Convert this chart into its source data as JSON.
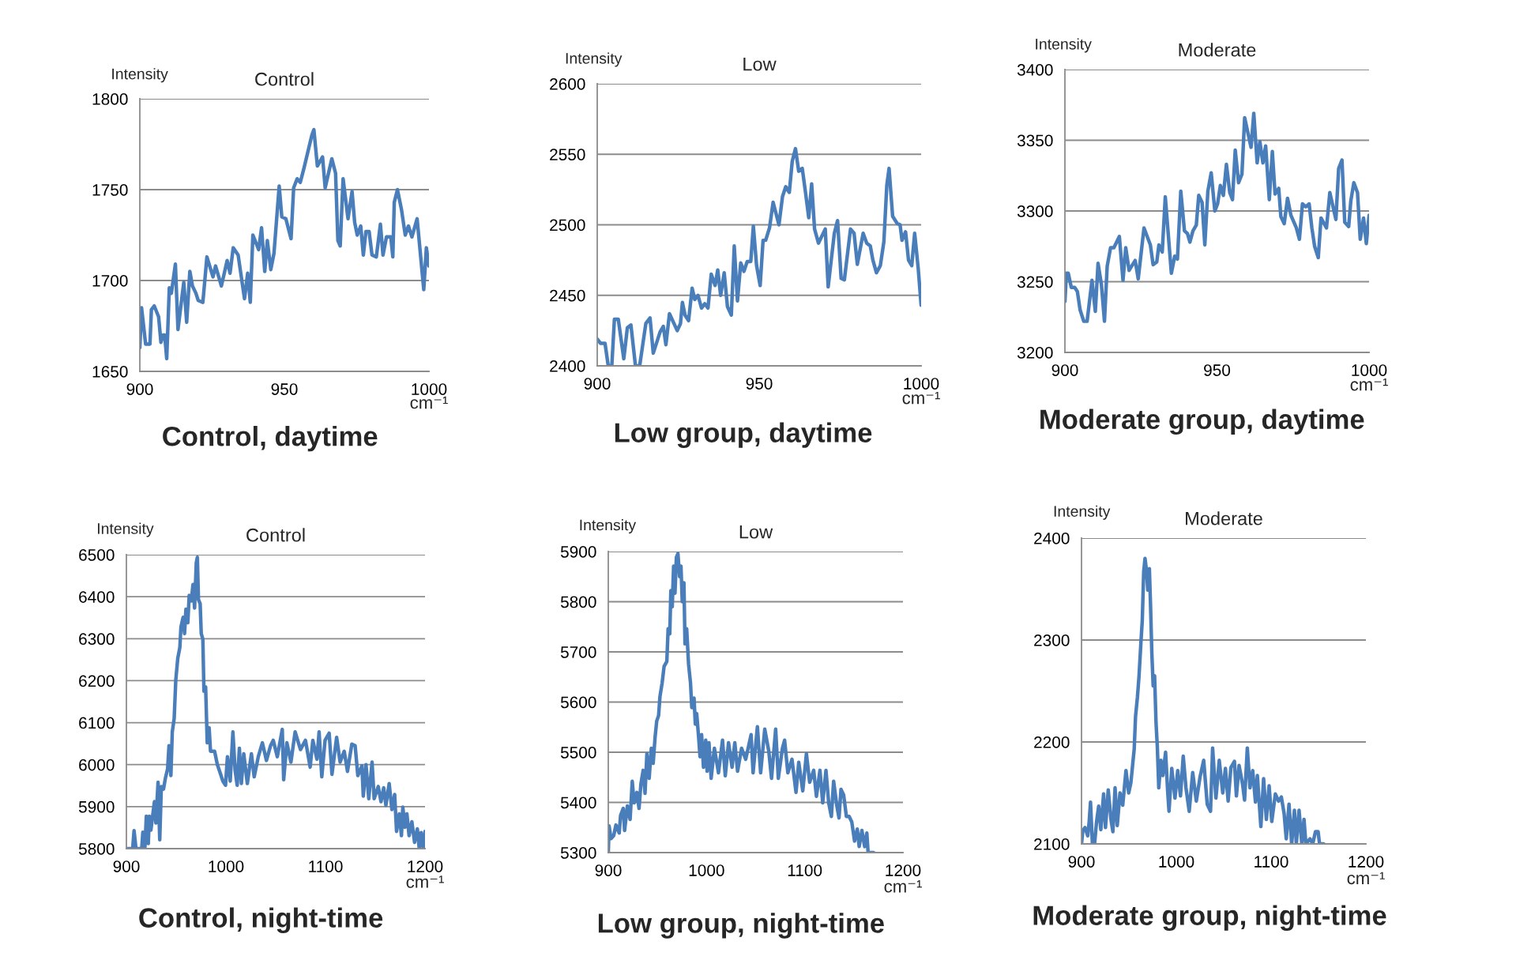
{
  "chart_data": [
    {
      "type": "line",
      "title": "Control",
      "ylabel": "Intensity",
      "xlabel": "cm⁻¹",
      "annotations": [
        "Control, daytime"
      ],
      "xlim": [
        900,
        1000
      ],
      "ylim": [
        1650,
        1800
      ],
      "xticks": [
        900,
        950,
        1000
      ],
      "yticks": [
        1650,
        1700,
        1750,
        1800
      ],
      "grid": "y",
      "color": "#4a7ebb",
      "x": [
        900,
        900.6,
        902,
        903.5,
        904,
        905,
        906.5,
        907.3,
        908,
        908.6,
        909.3,
        910.2,
        910.9,
        912.3,
        913.2,
        915.2,
        916.2,
        917.3,
        918.2,
        919.4,
        920.2,
        921.8,
        923.2,
        925.3,
        926.2,
        928.2,
        930.2,
        931.2,
        932.3,
        934,
        936.2,
        937.3,
        938.2,
        939.1,
        941.1,
        942.1,
        943.2,
        944.1,
        945.3,
        946.4,
        948.2,
        949.1,
        950.5,
        952.3,
        953.2,
        954.4,
        955.5,
        956.8,
        959.5,
        960.2,
        961.4,
        963.2,
        964.1,
        966.4,
        967.7,
        968.5,
        969.3,
        970.3,
        972,
        973.4,
        974.3,
        975.2,
        976.4,
        977.3,
        978.2,
        979.3,
        980.3,
        981.8,
        983.2,
        984.1,
        985.3,
        986.8,
        987.5,
        988,
        989.1,
        990.5,
        991.8,
        992.9,
        994.1,
        995.9,
        998.2,
        999.1,
        1000
      ],
      "values": [
        1663,
        1685,
        1665,
        1665,
        1684,
        1686,
        1680,
        1666,
        1670,
        1670,
        1657,
        1696,
        1693,
        1709,
        1673,
        1699,
        1677,
        1705,
        1697,
        1693,
        1689,
        1688,
        1713,
        1702,
        1708,
        1697,
        1711,
        1704,
        1718,
        1714,
        1690,
        1704,
        1688,
        1725,
        1717,
        1729,
        1705,
        1722,
        1706,
        1715,
        1752,
        1735,
        1734,
        1723,
        1751,
        1756,
        1754,
        1762,
        1780,
        1783,
        1763,
        1768,
        1751,
        1767,
        1759,
        1722,
        1719,
        1756,
        1734,
        1749,
        1732,
        1725,
        1730,
        1714,
        1727,
        1727,
        1714,
        1713,
        1731,
        1714,
        1724,
        1724,
        1713,
        1743,
        1750,
        1739,
        1725,
        1730,
        1724,
        1734,
        1695,
        1718,
        1708
      ]
    },
    {
      "type": "line",
      "title": "Low",
      "ylabel": "Intensity",
      "xlabel": "cm⁻¹",
      "annotations": [
        "Low group, daytime"
      ],
      "xlim": [
        900,
        1000
      ],
      "ylim": [
        2400,
        2600
      ],
      "xticks": [
        900,
        950,
        1000
      ],
      "yticks": [
        2400,
        2450,
        2500,
        2550,
        2600
      ],
      "grid": "y",
      "color": "#4a7ebb",
      "x": [
        900,
        901,
        902.4,
        903.4,
        904.5,
        905.3,
        906.5,
        908.2,
        909.3,
        910.4,
        911.8,
        913.1,
        915,
        916.3,
        917.3,
        919.4,
        920.4,
        921.2,
        922.3,
        924.7,
        925.7,
        926.3,
        927.1,
        928.2,
        929.3,
        930.1,
        931.1,
        932.2,
        933.2,
        934.2,
        935.2,
        936.4,
        937.2,
        938.1,
        939.2,
        940.2,
        941.4,
        942.3,
        943.3,
        944.3,
        945.3,
        946.3,
        947.4,
        948.2,
        949.2,
        950.3,
        951.2,
        952,
        953.2,
        954.3,
        956.1,
        957.2,
        958.2,
        959.3,
        960.2,
        961.2,
        962.2,
        963.3,
        964.3,
        965.3,
        966.2,
        967.1,
        968.3,
        970.4,
        971.3,
        973.2,
        974.2,
        975.3,
        976.3,
        978.2,
        979.3,
        980.3,
        982.1,
        983.2,
        984.3,
        985.1,
        986.2,
        987.4,
        988.5,
        989.4,
        990.1,
        991.2,
        992.6,
        993.5,
        994.1,
        995.2,
        996.1,
        997.1,
        998,
        999.1,
        1000
      ],
      "values": [
        2419,
        2416,
        2416,
        2400,
        2400,
        2433,
        2433,
        2405,
        2427,
        2429,
        2400,
        2400,
        2430,
        2434,
        2409,
        2424,
        2428,
        2415,
        2437,
        2425,
        2430,
        2445,
        2436,
        2432,
        2455,
        2447,
        2450,
        2441,
        2444,
        2441,
        2465,
        2457,
        2468,
        2450,
        2466,
        2442,
        2436,
        2485,
        2446,
        2473,
        2467,
        2474,
        2474,
        2499,
        2471,
        2457,
        2489,
        2489,
        2498,
        2516,
        2500,
        2520,
        2527,
        2523,
        2545,
        2554,
        2538,
        2540,
        2523,
        2505,
        2529,
        2497,
        2487,
        2497,
        2456,
        2494,
        2503,
        2462,
        2461,
        2497,
        2494,
        2472,
        2494,
        2487,
        2485,
        2475,
        2466,
        2471,
        2488,
        2528,
        2540,
        2506,
        2501,
        2500,
        2489,
        2495,
        2475,
        2471,
        2494,
        2469,
        2443
      ]
    },
    {
      "type": "line",
      "title": "Moderate",
      "ylabel": "Intensity",
      "xlabel": "cm⁻¹",
      "annotations": [
        "Moderate group, daytime"
      ],
      "xlim": [
        900,
        1000
      ],
      "ylim": [
        3200,
        3400
      ],
      "xticks": [
        900,
        950,
        1000
      ],
      "yticks": [
        3200,
        3250,
        3300,
        3350,
        3400
      ],
      "grid": "y",
      "color": "#4a7ebb",
      "x": [
        900,
        900.5,
        901.1,
        902.1,
        903.2,
        904.1,
        905,
        906.2,
        907.3,
        908.9,
        910,
        910.9,
        912,
        913,
        913.9,
        915,
        916.1,
        917.9,
        919.1,
        920,
        921.1,
        923.1,
        924.1,
        926,
        928.1,
        929,
        930.2,
        930.9,
        932,
        933,
        935,
        936.1,
        937,
        938.1,
        939.3,
        940.3,
        941.1,
        942.1,
        943.2,
        944,
        945.1,
        946,
        947,
        948.1,
        949.3,
        950.2,
        951.1,
        952.1,
        953.1,
        954.2,
        955.1,
        956,
        957.1,
        958.2,
        959.1,
        961.2,
        962.1,
        963.2,
        964.1,
        965.1,
        966,
        967.2,
        968.2,
        969.1,
        970.3,
        971,
        972.1,
        973.2,
        974.3,
        976.1,
        977.1,
        978.1,
        979.2,
        980.3,
        981.2,
        982.1,
        983.3,
        984.2,
        986,
        987.1,
        989.1,
        990,
        991.1,
        992,
        993.3,
        994,
        995,
        996.2,
        997.1,
        998.2,
        999.1,
        1000
      ],
      "values": [
        3236,
        3256,
        3256,
        3246,
        3246,
        3243,
        3230,
        3222,
        3222,
        3251,
        3229,
        3263,
        3248,
        3222,
        3261,
        3274,
        3274,
        3282,
        3251,
        3274,
        3258,
        3265,
        3252,
        3288,
        3276,
        3262,
        3264,
        3276,
        3271,
        3310,
        3256,
        3268,
        3266,
        3314,
        3286,
        3284,
        3278,
        3286,
        3290,
        3311,
        3306,
        3276,
        3314,
        3327,
        3300,
        3305,
        3318,
        3311,
        3333,
        3313,
        3308,
        3343,
        3320,
        3326,
        3366,
        3345,
        3369,
        3334,
        3349,
        3334,
        3346,
        3308,
        3342,
        3312,
        3316,
        3296,
        3291,
        3309,
        3297,
        3288,
        3280,
        3305,
        3303,
        3305,
        3288,
        3275,
        3267,
        3295,
        3288,
        3313,
        3294,
        3330,
        3336,
        3292,
        3289,
        3307,
        3320,
        3313,
        3280,
        3295,
        3277,
        3297
      ]
    },
    {
      "type": "line",
      "title": "Control",
      "ylabel": "Intensity",
      "xlabel": "cm⁻¹",
      "annotations": [
        "Control, night-time"
      ],
      "xlim": [
        900,
        1200
      ],
      "ylim": [
        5800,
        6500
      ],
      "xticks": [
        900,
        1000,
        1100,
        1200
      ],
      "yticks": [
        5800,
        5900,
        6000,
        6100,
        6200,
        6300,
        6400,
        6500
      ],
      "grid": "y",
      "color": "#4a7ebb",
      "x": [
        900,
        903.6,
        906.3,
        907.7,
        909.6,
        915.4,
        916.5,
        918.6,
        920,
        922,
        923,
        924.6,
        926.3,
        928.2,
        929.6,
        931.8,
        933.5,
        935.1,
        937.3,
        939.2,
        941.4,
        942.8,
        944.7,
        946.1,
        948,
        949.6,
        951.6,
        953.7,
        954.8,
        957,
        958.4,
        959.8,
        961.7,
        963.1,
        965.2,
        966.9,
        968.5,
        970.2,
        971.3,
        972.4,
        974.1,
        975.2,
        976.8,
        977.9,
        979.6,
        981.2,
        983.1,
        984.5,
        988.6,
        991.4,
        994.1,
        996.9,
        999.6,
        1001.5,
        1004.3,
        1007,
        1009.2,
        1011.3,
        1013.5,
        1015.5,
        1017.9,
        1021.5,
        1025.6,
        1028.4,
        1032.5,
        1036.6,
        1040.7,
        1044.8,
        1047.5,
        1051.6,
        1056.6,
        1058,
        1061.2,
        1065.3,
        1069.5,
        1074.9,
        1079.9,
        1084.6,
        1087.3,
        1091.4,
        1093.6,
        1096.3,
        1099.6,
        1103.7,
        1106.5,
        1111.2,
        1114.7,
        1118.8,
        1122.1,
        1126.5,
        1129.8,
        1132.5,
        1136.6,
        1138,
        1140.7,
        1143.5,
        1146.8,
        1148.9,
        1153,
        1155.8,
        1158.5,
        1160.7,
        1164,
        1166.7,
        1169.5,
        1171.4,
        1174.2,
        1176.3,
        1177.7,
        1179.9,
        1181.8,
        1184,
        1186.8,
        1189.5,
        1192.3,
        1194.2,
        1196.1,
        1198.2,
        1200
      ],
      "values": [
        5800,
        5800,
        5800,
        5843,
        5800,
        5800,
        5839,
        5802,
        5877,
        5812,
        5877,
        5844,
        5877,
        5912,
        5861,
        5958,
        5821,
        5948,
        5942,
        5968,
        5990,
        6045,
        5974,
        6078,
        6110,
        6201,
        6253,
        6279,
        6328,
        6351,
        6312,
        6370,
        6338,
        6403,
        6390,
        6429,
        6373,
        6481,
        6494,
        6393,
        6383,
        6312,
        6299,
        6175,
        6185,
        6052,
        6088,
        6032,
        6032,
        6000,
        5981,
        5961,
        5951,
        6019,
        5961,
        6078,
        5987,
        5951,
        6039,
        5955,
        6026,
        5955,
        6026,
        5971,
        6019,
        6052,
        6010,
        6045,
        6058,
        6019,
        6084,
        5964,
        6052,
        6006,
        6078,
        6036,
        6058,
        5994,
        6058,
        6013,
        6078,
        5971,
        6058,
        6075,
        5977,
        6065,
        6006,
        6032,
        5984,
        6049,
        6045,
        5974,
        5997,
        5925,
        6000,
        5919,
        6006,
        5919,
        5948,
        5912,
        5945,
        5903,
        5955,
        5893,
        5929,
        5841,
        5883,
        5831,
        5899,
        5851,
        5883,
        5831,
        5864,
        5815,
        5847,
        5800,
        5838,
        5800,
        5841
      ]
    },
    {
      "type": "line",
      "title": "Low",
      "ylabel": "Intensity",
      "xlabel": "cm⁻¹",
      "annotations": [
        "Low group, night-time"
      ],
      "xlim": [
        900,
        1200
      ],
      "ylim": [
        5300,
        5900
      ],
      "xticks": [
        900,
        1000,
        1100,
        1200
      ],
      "yticks": [
        5300,
        5400,
        5500,
        5600,
        5700,
        5800,
        5900
      ],
      "grid": "y",
      "color": "#4a7ebb",
      "x": [
        900,
        900.8,
        902.8,
        905.5,
        907.8,
        911.1,
        912.5,
        915.2,
        916.6,
        919.4,
        922.2,
        924.4,
        926.3,
        929.1,
        931.3,
        933.2,
        935.5,
        937.4,
        939.3,
        941.6,
        943.8,
        945.7,
        947.6,
        949.3,
        951.2,
        952.6,
        954.8,
        956.8,
        959.6,
        960.9,
        962.6,
        963.7,
        965.1,
        966.5,
        967.9,
        969.3,
        970.9,
        972.6,
        974,
        975.3,
        977,
        978.1,
        979.8,
        981.7,
        983.7,
        985,
        987.3,
        988.6,
        990,
        992,
        993.4,
        995,
        996.9,
        999.2,
        1000.6,
        1002.5,
        1004.7,
        1008,
        1012.2,
        1016.3,
        1019.1,
        1022.4,
        1026,
        1028.8,
        1031.6,
        1035.7,
        1039.9,
        1045.4,
        1047.4,
        1051.8,
        1055.1,
        1059.3,
        1063.4,
        1066.2,
        1070.4,
        1073.1,
        1077.3,
        1079.5,
        1082.8,
        1087,
        1091.1,
        1093.9,
        1098,
        1101.7,
        1105,
        1109.1,
        1111.9,
        1115.5,
        1118.3,
        1121.6,
        1124.4,
        1127.1,
        1129.4,
        1132.7,
        1134.9,
        1136.9,
        1139.6,
        1142.4,
        1145.2,
        1147.9,
        1150.7,
        1153.5,
        1155.4,
        1158.2,
        1161,
        1163.2,
        1164.5,
        1170.1
      ],
      "values": [
        5300,
        5353,
        5328,
        5334,
        5355,
        5339,
        5374,
        5388,
        5344,
        5393,
        5366,
        5442,
        5399,
        5420,
        5388,
        5437,
        5464,
        5418,
        5497,
        5448,
        5508,
        5478,
        5529,
        5562,
        5573,
        5611,
        5638,
        5671,
        5681,
        5746,
        5736,
        5822,
        5790,
        5871,
        5817,
        5888,
        5896,
        5850,
        5871,
        5800,
        5838,
        5716,
        5746,
        5676,
        5638,
        5589,
        5608,
        5556,
        5577,
        5529,
        5491,
        5535,
        5470,
        5524,
        5462,
        5519,
        5448,
        5508,
        5459,
        5524,
        5453,
        5519,
        5470,
        5519,
        5462,
        5508,
        5486,
        5535,
        5459,
        5551,
        5459,
        5546,
        5502,
        5448,
        5546,
        5448,
        5508,
        5524,
        5459,
        5486,
        5420,
        5480,
        5423,
        5497,
        5440,
        5464,
        5412,
        5464,
        5399,
        5464,
        5399,
        5372,
        5442,
        5393,
        5369,
        5426,
        5415,
        5372,
        5372,
        5361,
        5323,
        5347,
        5312,
        5344,
        5312,
        5339,
        5300,
        5300
      ]
    },
    {
      "type": "line",
      "title": "Moderate",
      "ylabel": "Intensity",
      "xlabel": "cm⁻¹",
      "annotations": [
        "Moderate group, night-time"
      ],
      "xlim": [
        900,
        1200
      ],
      "ylim": [
        2100,
        2400
      ],
      "xticks": [
        900,
        1000,
        1100,
        1200
      ],
      "yticks": [
        2100,
        2200,
        2300,
        2400
      ],
      "grid": "y",
      "color": "#4a7ebb",
      "x": [
        900,
        901.4,
        903.7,
        906.6,
        908.1,
        909.5,
        911.5,
        913.8,
        915.8,
        918.1,
        920.4,
        923.3,
        925.3,
        928.2,
        931.1,
        933.1,
        935.4,
        937.7,
        940.6,
        943.5,
        946.9,
        949.8,
        952.1,
        954.2,
        955.6,
        957,
        959,
        960.7,
        962.7,
        964.1,
        965.6,
        967,
        968.7,
        969.9,
        971.6,
        972.8,
        974.2,
        975.6,
        977.1,
        978.6,
        980,
        981.5,
        983.8,
        985.8,
        988.7,
        990.8,
        992.3,
        995.2,
        998.6,
        1001.5,
        1004.4,
        1007.3,
        1010.2,
        1013.6,
        1017.3,
        1021.1,
        1025.1,
        1028.9,
        1032.6,
        1036.1,
        1038.3,
        1041.8,
        1045.3,
        1049,
        1051.8,
        1054.7,
        1057.6,
        1061.3,
        1063.4,
        1066.2,
        1070,
        1072,
        1074.9,
        1077.7,
        1080.6,
        1083.5,
        1085.5,
        1089.2,
        1092.1,
        1095,
        1097.9,
        1100.7,
        1104.5,
        1107.9,
        1110.8,
        1113.7,
        1116,
        1118.9,
        1121.7,
        1124.6,
        1126.6,
        1129.5,
        1132.4,
        1134.7,
        1136.7,
        1141,
        1143.9,
        1146.8,
        1149.6,
        1151.1,
        1155.4
      ],
      "values": [
        2100,
        2113,
        2116,
        2108,
        2122,
        2141,
        2100,
        2100,
        2121,
        2137,
        2114,
        2149,
        2116,
        2153,
        2124,
        2112,
        2155,
        2118,
        2150,
        2138,
        2172,
        2150,
        2160,
        2180,
        2193,
        2225,
        2244,
        2265,
        2298,
        2319,
        2367,
        2380,
        2367,
        2349,
        2370,
        2335,
        2287,
        2255,
        2265,
        2219,
        2195,
        2155,
        2182,
        2167,
        2190,
        2153,
        2132,
        2174,
        2145,
        2172,
        2147,
        2186,
        2155,
        2132,
        2170,
        2142,
        2166,
        2182,
        2139,
        2132,
        2194,
        2145,
        2182,
        2150,
        2174,
        2142,
        2175,
        2181,
        2147,
        2177,
        2158,
        2143,
        2194,
        2155,
        2172,
        2141,
        2167,
        2117,
        2164,
        2124,
        2157,
        2122,
        2149,
        2142,
        2146,
        2130,
        2105,
        2139,
        2100,
        2133,
        2100,
        2133,
        2100,
        2124,
        2100,
        2105,
        2100,
        2112,
        2112,
        2100,
        2100
      ]
    }
  ]
}
